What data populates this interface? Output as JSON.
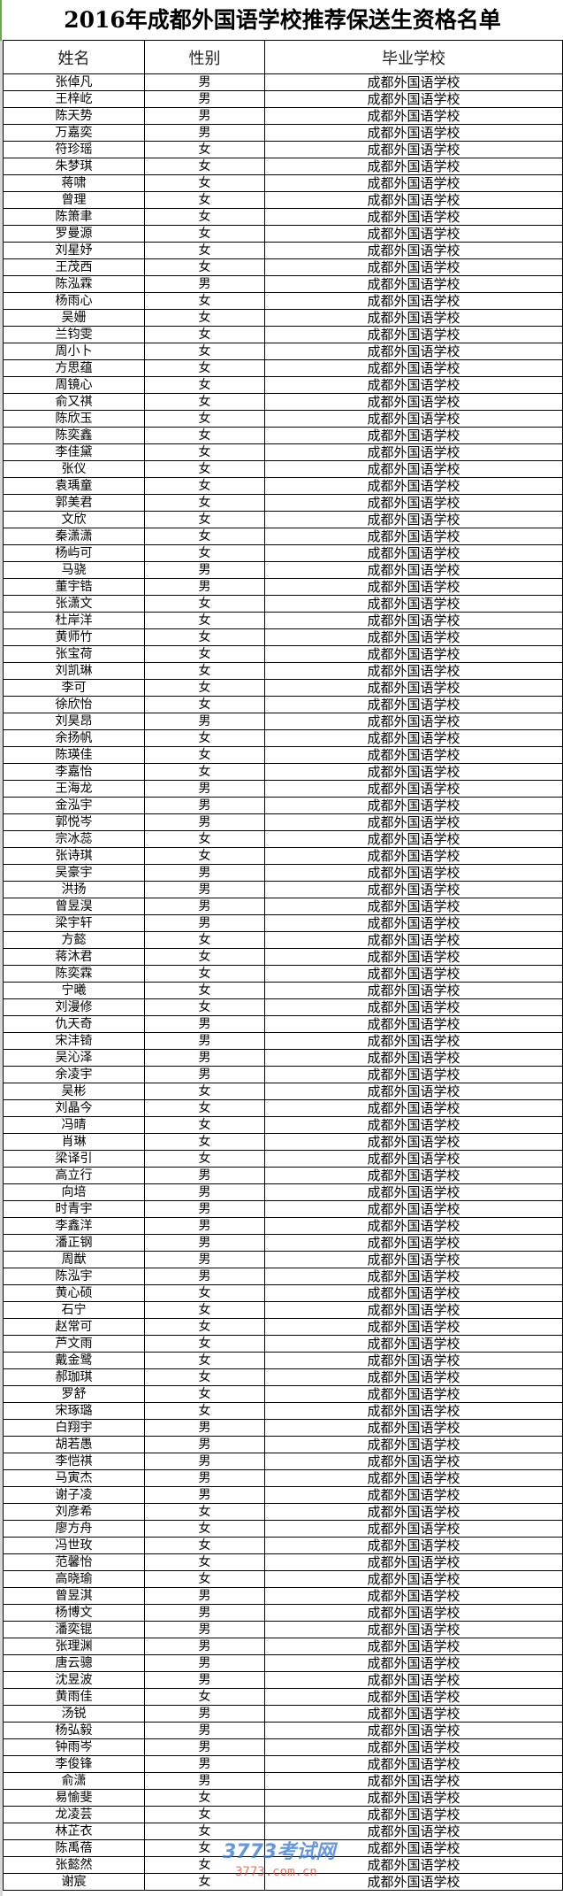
{
  "title": "2016年成都外国语学校推荐保送生资格名单",
  "headers": {
    "name": "姓名",
    "gender": "性别",
    "school": "毕业学校"
  },
  "school_default": "成都外国语学校",
  "watermark": {
    "logo": "3773考试网",
    "url": "3773.com.cn"
  },
  "rows": [
    [
      "张倬凡",
      "男"
    ],
    [
      "王梓屹",
      "男"
    ],
    [
      "陈天势",
      "男"
    ],
    [
      "万嘉奕",
      "男"
    ],
    [
      "符珍瑶",
      "女"
    ],
    [
      "朱梦琪",
      "女"
    ],
    [
      "蒋啸",
      "女"
    ],
    [
      "曾理",
      "女"
    ],
    [
      "陈箫聿",
      "女"
    ],
    [
      "罗曼源",
      "女"
    ],
    [
      "刘星妤",
      "女"
    ],
    [
      "王茂西",
      "女"
    ],
    [
      "陈泓霖",
      "男"
    ],
    [
      "杨雨心",
      "女"
    ],
    [
      "吴姗",
      "女"
    ],
    [
      "兰钧雯",
      "女"
    ],
    [
      "周小卜",
      "女"
    ],
    [
      "方思蕴",
      "女"
    ],
    [
      "周镜心",
      "女"
    ],
    [
      "俞又祺",
      "女"
    ],
    [
      "陈欣玉",
      "女"
    ],
    [
      "陈奕鑫",
      "女"
    ],
    [
      "李佳黛",
      "女"
    ],
    [
      "张仪",
      "女"
    ],
    [
      "袁瑀童",
      "女"
    ],
    [
      "郭美君",
      "女"
    ],
    [
      "文欣",
      "女"
    ],
    [
      "秦潇潇",
      "女"
    ],
    [
      "杨屿可",
      "女"
    ],
    [
      "马骁",
      "男"
    ],
    [
      "董宇锆",
      "男"
    ],
    [
      "张潇文",
      "女"
    ],
    [
      "杜岸洋",
      "女"
    ],
    [
      "黄师竹",
      "女"
    ],
    [
      "张宝荷",
      "女"
    ],
    [
      "刘凯琳",
      "女"
    ],
    [
      "李可",
      "女"
    ],
    [
      "徐欣怡",
      "女"
    ],
    [
      "刘昊昂",
      "男"
    ],
    [
      "余扬帆",
      "女"
    ],
    [
      "陈瑛佳",
      "女"
    ],
    [
      "李嘉怡",
      "女"
    ],
    [
      "王海龙",
      "男"
    ],
    [
      "金泓宇",
      "男"
    ],
    [
      "郭悦岑",
      "男"
    ],
    [
      "宗冰蕊",
      "女"
    ],
    [
      "张诗琪",
      "女"
    ],
    [
      "吴豪宇",
      "男"
    ],
    [
      "洪扬",
      "男"
    ],
    [
      "曾昱淏",
      "男"
    ],
    [
      "梁宇轩",
      "男"
    ],
    [
      "方懿",
      "女"
    ],
    [
      "蒋沐君",
      "女"
    ],
    [
      "陈奕霖",
      "女"
    ],
    [
      "宁曦",
      "女"
    ],
    [
      "刘漫修",
      "女"
    ],
    [
      "仇天奇",
      "男"
    ],
    [
      "宋沣锜",
      "男"
    ],
    [
      "吴沁泽",
      "男"
    ],
    [
      "余凌宇",
      "男"
    ],
    [
      "吴彬",
      "女"
    ],
    [
      "刘晶今",
      "女"
    ],
    [
      "冯晴",
      "女"
    ],
    [
      "肖琳",
      "女"
    ],
    [
      "梁译引",
      "女"
    ],
    [
      "高立行",
      "男"
    ],
    [
      "向培",
      "男"
    ],
    [
      "时青宇",
      "男"
    ],
    [
      "李鑫洋",
      "男"
    ],
    [
      "潘正钢",
      "男"
    ],
    [
      "周猷",
      "男"
    ],
    [
      "陈泓宇",
      "男"
    ],
    [
      "黄心硕",
      "女"
    ],
    [
      "石宁",
      "女"
    ],
    [
      "赵常可",
      "女"
    ],
    [
      "芦文雨",
      "女"
    ],
    [
      "戴金鹭",
      "女"
    ],
    [
      "郝珈琪",
      "女"
    ],
    [
      "罗舒",
      "女"
    ],
    [
      "宋琢璐",
      "女"
    ],
    [
      "白翔宇",
      "男"
    ],
    [
      "胡若愚",
      "男"
    ],
    [
      "李恺祺",
      "男"
    ],
    [
      "马寅杰",
      "男"
    ],
    [
      "谢子凌",
      "男"
    ],
    [
      "刘彦希",
      "女"
    ],
    [
      "廖方舟",
      "女"
    ],
    [
      "冯世玫",
      "女"
    ],
    [
      "范馨怡",
      "女"
    ],
    [
      "高晓瑜",
      "女"
    ],
    [
      "曾昱淇",
      "男"
    ],
    [
      "杨博文",
      "男"
    ],
    [
      "潘奕锟",
      "男"
    ],
    [
      "张理渊",
      "男"
    ],
    [
      "唐云骢",
      "男"
    ],
    [
      "沈昱波",
      "男"
    ],
    [
      "黄雨佳",
      "女"
    ],
    [
      "汤锐",
      "男"
    ],
    [
      "杨弘毅",
      "男"
    ],
    [
      "钟雨岑",
      "男"
    ],
    [
      "李俊锋",
      "男"
    ],
    [
      "俞潇",
      "男"
    ],
    [
      "易愉斐",
      "女"
    ],
    [
      "龙凌芸",
      "女"
    ],
    [
      "林芷衣",
      "女"
    ],
    [
      "陈禹蓓",
      "女"
    ],
    [
      "张懿然",
      "女"
    ],
    [
      "谢宸",
      "女"
    ]
  ]
}
